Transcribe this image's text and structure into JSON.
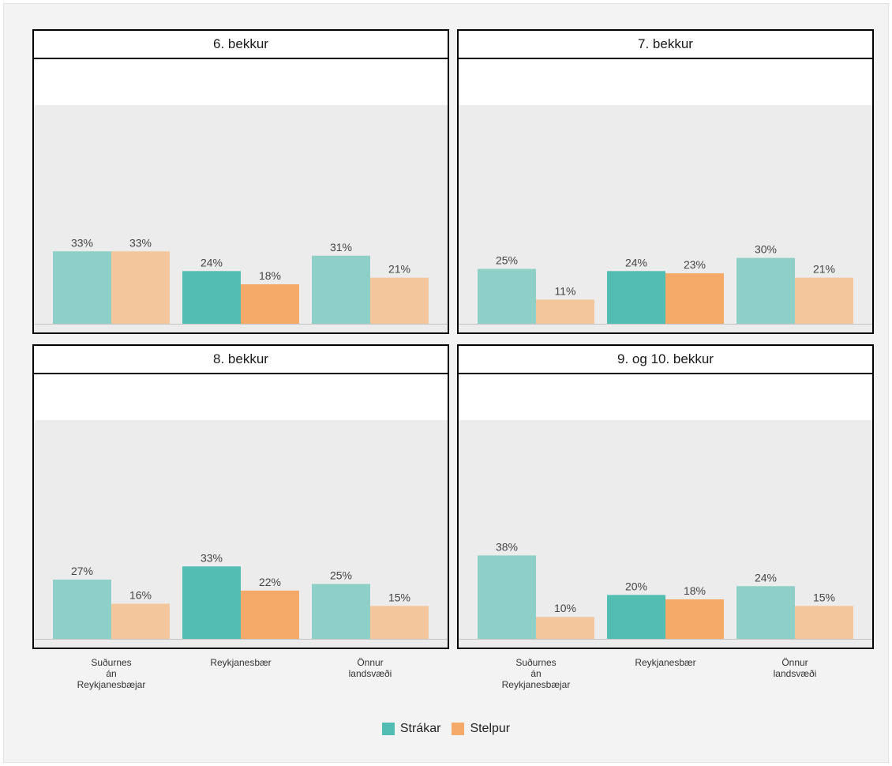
{
  "colors": {
    "strakar": "#52bdb2",
    "stelpur": "#f6aa6a",
    "panel_bg": "#ececec",
    "label": "#444444"
  },
  "legend": [
    {
      "label": "Strákar",
      "color": "#52bdb2"
    },
    {
      "label": "Stelpur",
      "color": "#f6aa6a"
    }
  ],
  "x_tick_labels": [
    "Suðurnes\nán\nReykjanesbæjar",
    "Reykjanesbær",
    "Önnur\nlandsvæði"
  ],
  "chart_data": [
    {
      "type": "bar",
      "title": "6. bekkur",
      "categories": [
        "Suðurnes án Reykjanesbæjar",
        "Reykjanesbær",
        "Önnur landsvæði"
      ],
      "series": [
        {
          "name": "Strákar",
          "values": [
            33,
            24,
            31
          ],
          "labels": [
            "33%",
            "24%",
            "31%"
          ]
        },
        {
          "name": "Stelpur",
          "values": [
            33,
            18,
            21
          ],
          "labels": [
            "33%",
            "18%",
            "21%"
          ]
        }
      ],
      "highlight_category": "Reykjanesbær",
      "ylim": [
        0,
        100
      ]
    },
    {
      "type": "bar",
      "title": "7. bekkur",
      "categories": [
        "Suðurnes án Reykjanesbæjar",
        "Reykjanesbær",
        "Önnur landsvæði"
      ],
      "series": [
        {
          "name": "Strákar",
          "values": [
            25,
            24,
            30
          ],
          "labels": [
            "25%",
            "24%",
            "30%"
          ]
        },
        {
          "name": "Stelpur",
          "values": [
            11,
            23,
            21
          ],
          "labels": [
            "11%",
            "23%",
            "21%"
          ]
        }
      ],
      "highlight_category": "Reykjanesbær",
      "ylim": [
        0,
        100
      ]
    },
    {
      "type": "bar",
      "title": "8. bekkur",
      "categories": [
        "Suðurnes án Reykjanesbæjar",
        "Reykjanesbær",
        "Önnur landsvæði"
      ],
      "series": [
        {
          "name": "Strákar",
          "values": [
            27,
            33,
            25
          ],
          "labels": [
            "27%",
            "33%",
            "25%"
          ]
        },
        {
          "name": "Stelpur",
          "values": [
            16,
            22,
            15
          ],
          "labels": [
            "16%",
            "22%",
            "15%"
          ]
        }
      ],
      "highlight_category": "Reykjanesbær",
      "ylim": [
        0,
        100
      ]
    },
    {
      "type": "bar",
      "title": "9. og 10. bekkur",
      "categories": [
        "Suðurnes án Reykjanesbæjar",
        "Reykjanesbær",
        "Önnur landsvæði"
      ],
      "series": [
        {
          "name": "Strákar",
          "values": [
            38,
            20,
            24
          ],
          "labels": [
            "38%",
            "20%",
            "24%"
          ]
        },
        {
          "name": "Stelpur",
          "values": [
            10,
            18,
            15
          ],
          "labels": [
            "10%",
            "18%",
            "15%"
          ]
        }
      ],
      "highlight_category": "Reykjanesbær",
      "ylim": [
        0,
        100
      ]
    }
  ]
}
